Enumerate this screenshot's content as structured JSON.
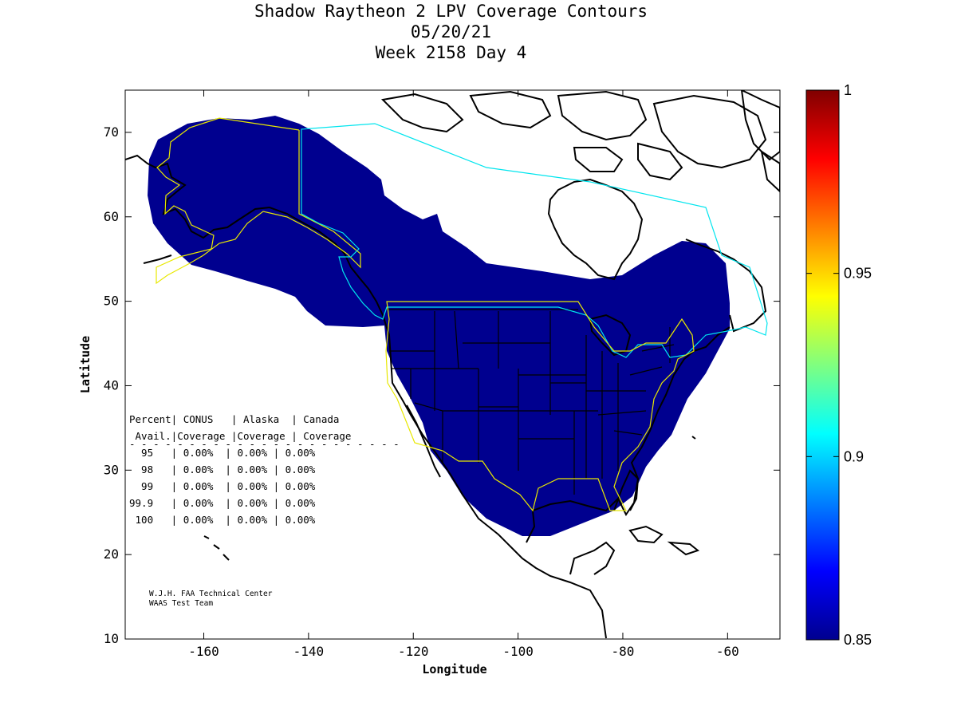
{
  "title": {
    "line1": "Shadow Raytheon 2 LPV Coverage Contours",
    "line2": "05/20/21",
    "line3": "Week 2158 Day 4"
  },
  "axes": {
    "xlabel": "Longitude",
    "ylabel": "Latitude",
    "xlim": [
      -175,
      -50
    ],
    "ylim": [
      10,
      75
    ],
    "xticks": [
      -160,
      -140,
      -120,
      -100,
      -80,
      -60
    ],
    "yticks": [
      10,
      20,
      30,
      40,
      50,
      60,
      70
    ]
  },
  "colorbar": {
    "range": [
      0.85,
      1
    ],
    "ticks": [
      "0.85",
      "0.9",
      "0.95",
      "1"
    ],
    "colormap": "jet"
  },
  "coverage_fill_color": "#00008f",
  "table": {
    "header1": "Percent| CONUS   | Alaska  | Canada",
    "header2": " Avail.|Coverage |Coverage | Coverage",
    "divider": "- - - - - - - - - - - - - - - - - - - - - - -",
    "rows": [
      "  95   | 0.00%  | 0.00% | 0.00%",
      "  98   | 0.00%  | 0.00% | 0.00%",
      "  99   | 0.00%  | 0.00% | 0.00%",
      "99.9   | 0.00%  | 0.00% | 0.00%",
      " 100   | 0.00%  | 0.00% | 0.00%"
    ]
  },
  "credits": {
    "line1": "W.J.H. FAA Technical Center",
    "line2": "WAAS Test Team"
  }
}
